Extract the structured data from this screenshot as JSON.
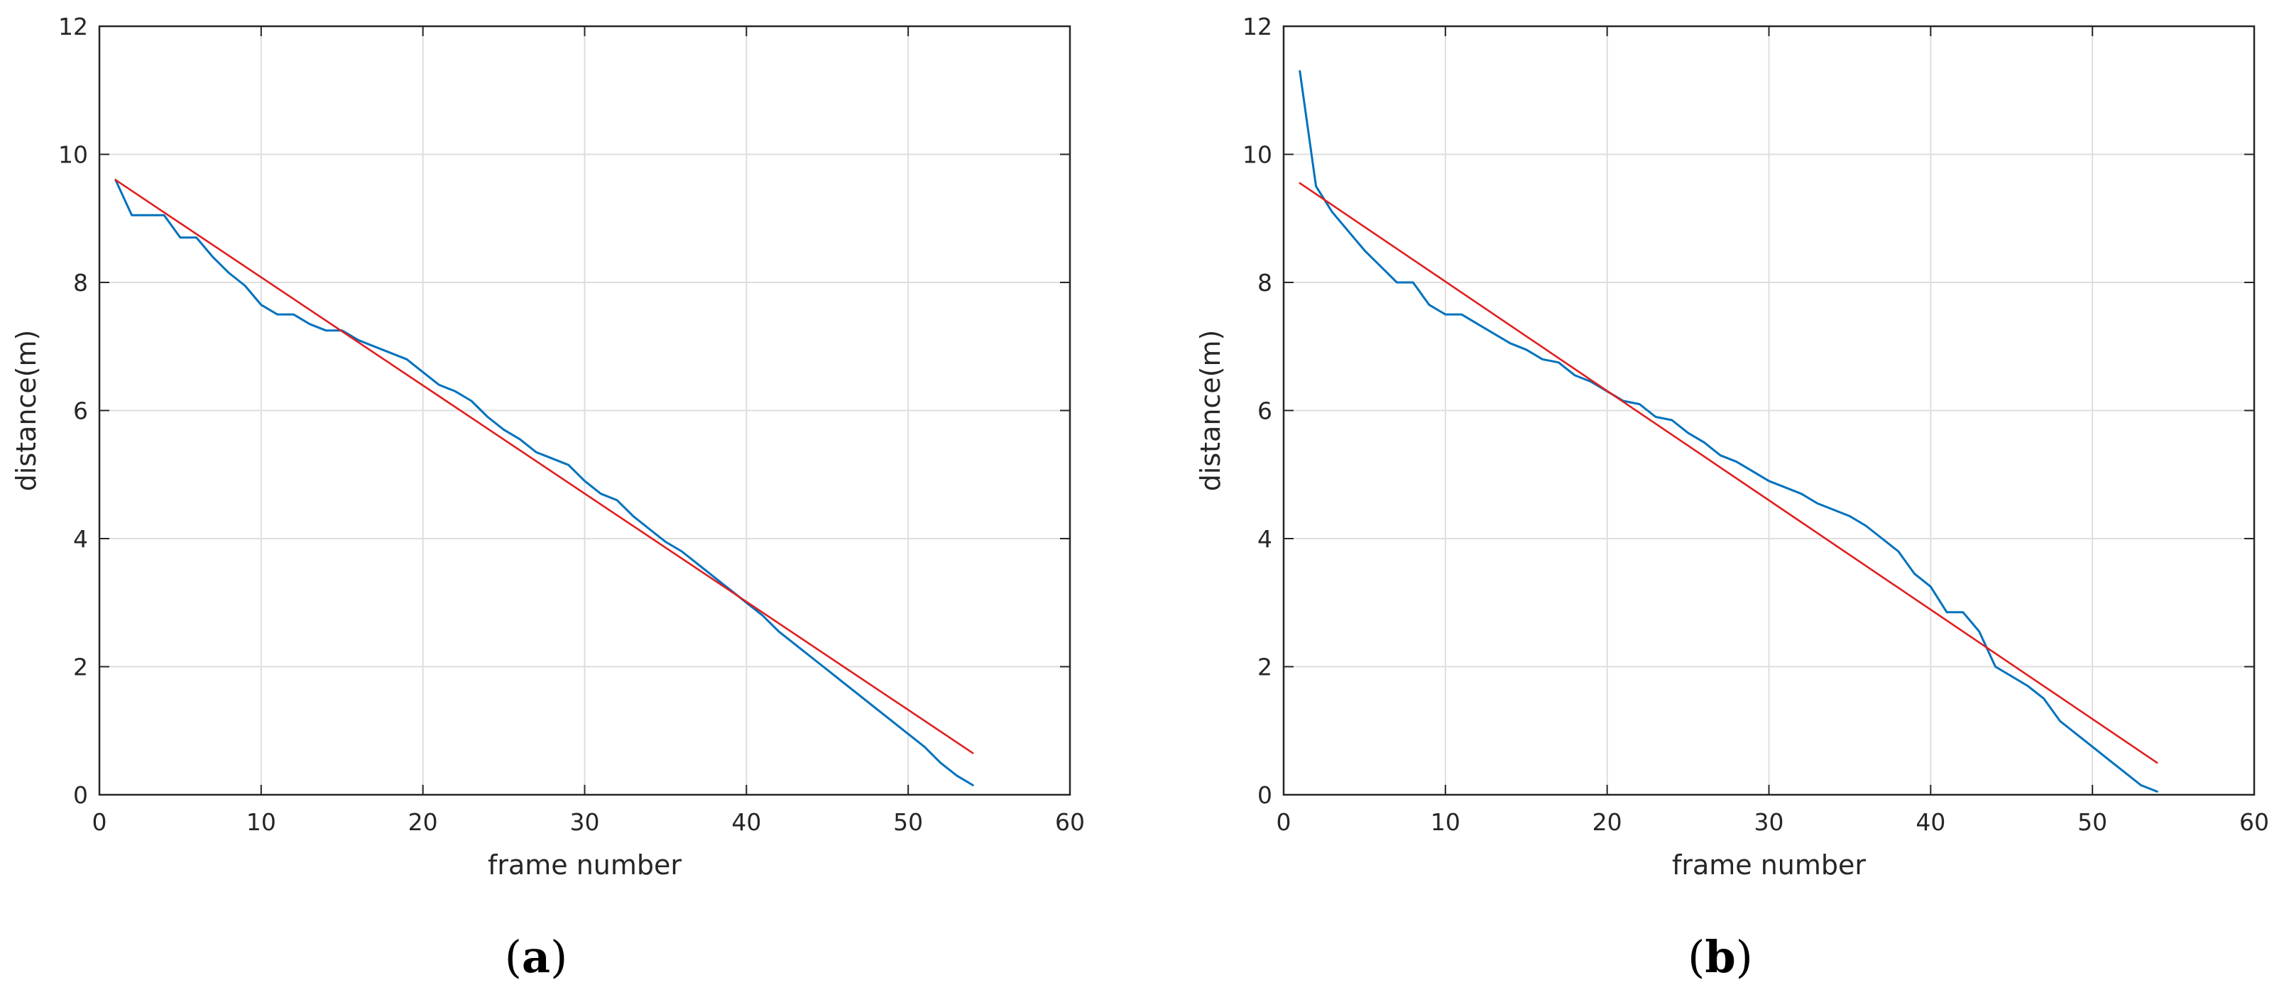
{
  "chart_data": [
    {
      "type": "line",
      "panel_label": "(a)",
      "panel_letter": "a",
      "xlabel": "frame number",
      "ylabel": "distance(m)",
      "xlim": [
        0,
        60
      ],
      "ylim": [
        0,
        12
      ],
      "xticks": [
        0,
        10,
        20,
        30,
        40,
        50,
        60
      ],
      "yticks": [
        0,
        2,
        4,
        6,
        8,
        10,
        12
      ],
      "grid": true,
      "series": [
        {
          "color": "#0072BD",
          "x": [
            1,
            2,
            3,
            4,
            5,
            6,
            7,
            8,
            9,
            10,
            11,
            12,
            13,
            14,
            15,
            16,
            17,
            18,
            19,
            20,
            21,
            22,
            23,
            24,
            25,
            26,
            27,
            28,
            29,
            30,
            31,
            32,
            33,
            34,
            35,
            36,
            37,
            38,
            39,
            40,
            41,
            42,
            43,
            44,
            45,
            46,
            47,
            48,
            49,
            50,
            51,
            52,
            53,
            54
          ],
          "y": [
            9.6,
            9.05,
            9.05,
            9.05,
            8.7,
            8.7,
            8.4,
            8.15,
            7.95,
            7.65,
            7.5,
            7.5,
            7.35,
            7.25,
            7.25,
            7.1,
            7.0,
            6.9,
            6.8,
            6.6,
            6.4,
            6.3,
            6.15,
            5.9,
            5.7,
            5.55,
            5.35,
            5.25,
            5.15,
            4.9,
            4.7,
            4.6,
            4.35,
            4.15,
            3.95,
            3.8,
            3.6,
            3.4,
            3.2,
            3.0,
            2.8,
            2.55,
            2.35,
            2.15,
            1.95,
            1.75,
            1.55,
            1.35,
            1.15,
            0.95,
            0.75,
            0.5,
            0.3,
            0.15
          ]
        },
        {
          "color": "#E01F1F",
          "x": [
            1,
            54
          ],
          "y": [
            9.6,
            0.65
          ]
        }
      ]
    },
    {
      "type": "line",
      "panel_label": "(b)",
      "panel_letter": "b",
      "xlabel": "frame number",
      "ylabel": "distance(m)",
      "xlim": [
        0,
        60
      ],
      "ylim": [
        0,
        12
      ],
      "xticks": [
        0,
        10,
        20,
        30,
        40,
        50,
        60
      ],
      "yticks": [
        0,
        2,
        4,
        6,
        8,
        10,
        12
      ],
      "grid": true,
      "series": [
        {
          "color": "#0072BD",
          "x": [
            1,
            2,
            3,
            4,
            5,
            6,
            7,
            8,
            9,
            10,
            11,
            12,
            13,
            14,
            15,
            16,
            17,
            18,
            19,
            20,
            21,
            22,
            23,
            24,
            25,
            26,
            27,
            28,
            29,
            30,
            31,
            32,
            33,
            34,
            35,
            36,
            37,
            38,
            39,
            40,
            41,
            42,
            43,
            44,
            45,
            46,
            47,
            48,
            49,
            50,
            51,
            52,
            53,
            54
          ],
          "y": [
            11.3,
            9.5,
            9.1,
            8.8,
            8.5,
            8.25,
            8.0,
            8.0,
            7.65,
            7.5,
            7.5,
            7.35,
            7.2,
            7.05,
            6.95,
            6.8,
            6.75,
            6.55,
            6.45,
            6.3,
            6.15,
            6.1,
            5.9,
            5.85,
            5.65,
            5.5,
            5.3,
            5.2,
            5.05,
            4.9,
            4.8,
            4.7,
            4.55,
            4.45,
            4.35,
            4.2,
            4.0,
            3.8,
            3.45,
            3.25,
            2.85,
            2.85,
            2.55,
            2.0,
            1.85,
            1.7,
            1.5,
            1.15,
            0.95,
            0.75,
            0.55,
            0.35,
            0.15,
            0.05
          ]
        },
        {
          "color": "#E01F1F",
          "x": [
            1,
            54
          ],
          "y": [
            9.55,
            0.5
          ]
        }
      ]
    }
  ]
}
